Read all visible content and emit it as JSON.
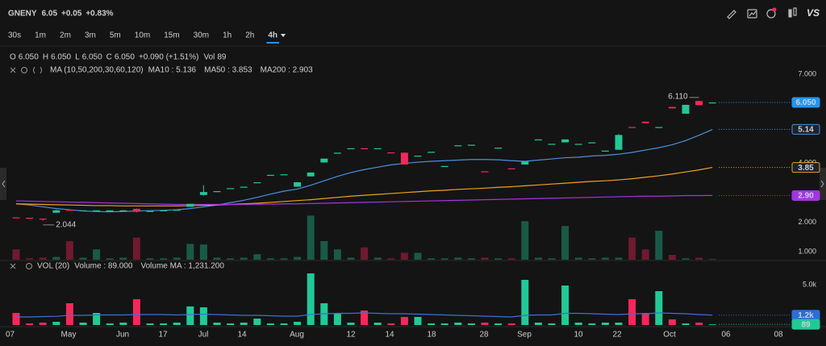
{
  "header": {
    "symbol": "GNENY",
    "price": "6.05",
    "change": "+0.05",
    "change_pct": "+0.83%",
    "brand": "VS"
  },
  "timeframes": [
    {
      "label": "30s"
    },
    {
      "label": "1m"
    },
    {
      "label": "2m"
    },
    {
      "label": "3m"
    },
    {
      "label": "5m"
    },
    {
      "label": "10m"
    },
    {
      "label": "15m"
    },
    {
      "label": "30m"
    },
    {
      "label": "1h"
    },
    {
      "label": "2h"
    },
    {
      "label": "4h",
      "selected": true
    }
  ],
  "chart_data": [
    {
      "type": "candlestick",
      "legend": {
        "o_label": "O",
        "o": "6.050",
        "h_label": "H",
        "h": "6.050",
        "l_label": "L",
        "l": "6.050",
        "c_label": "C",
        "c": "6.050",
        "change": "+0.090 (+1.51%)",
        "vol_label": "Vol",
        "vol": "89"
      },
      "ma_label": "MA (10,50,200,30,60,120)",
      "up_color": "#22c997",
      "down_color": "#f2295a",
      "open": [
        2.16,
        2.15,
        2.12,
        2.32,
        2.42,
        2.4,
        2.38,
        2.4,
        2.4,
        2.45,
        2.38,
        2.4,
        2.42,
        2.52,
        2.92,
        3.05,
        3.15,
        3.2,
        3.35,
        3.6,
        3.62,
        3.2,
        3.55,
        4.02,
        4.35,
        4.48,
        4.5,
        4.5,
        4.36,
        4.35,
        4.25,
        4.38,
        3.9,
        4.6,
        4.62,
        3.72,
        4.52,
        3.82,
        3.95,
        4.8,
        4.65,
        4.7,
        4.65,
        4.7,
        4.4,
        4.45,
        5.22,
        5.4,
        5.2,
        5.9,
        5.67,
        6.1,
        6.05
      ],
      "high": [
        2.16,
        2.15,
        2.12,
        2.42,
        2.42,
        2.4,
        2.4,
        2.4,
        2.41,
        2.46,
        2.38,
        2.4,
        2.42,
        2.62,
        3.25,
        3.05,
        3.15,
        3.2,
        3.35,
        3.6,
        3.62,
        3.35,
        3.68,
        4.15,
        4.35,
        4.5,
        4.5,
        4.5,
        4.36,
        4.36,
        4.25,
        4.38,
        3.9,
        4.6,
        4.62,
        3.72,
        4.52,
        3.82,
        4.05,
        4.8,
        4.65,
        4.8,
        4.65,
        4.7,
        4.42,
        4.98,
        5.22,
        5.4,
        5.22,
        5.9,
        5.97,
        6.11,
        6.05
      ],
      "low": [
        2.15,
        2.12,
        2.044,
        2.32,
        2.4,
        2.4,
        2.37,
        2.4,
        2.39,
        2.33,
        2.38,
        2.4,
        2.42,
        2.52,
        2.9,
        3.05,
        3.15,
        3.2,
        3.35,
        3.6,
        3.62,
        3.2,
        3.55,
        4.02,
        4.35,
        4.48,
        4.48,
        4.5,
        4.34,
        3.95,
        4.25,
        4.38,
        3.9,
        4.6,
        4.62,
        3.7,
        4.52,
        3.8,
        3.95,
        4.8,
        4.65,
        4.7,
        4.65,
        4.7,
        4.4,
        4.45,
        5.2,
        5.35,
        5.2,
        5.85,
        5.67,
        5.95,
        6.05
      ],
      "close": [
        2.15,
        2.12,
        2.1,
        2.4,
        2.4,
        2.4,
        2.4,
        2.4,
        2.4,
        2.35,
        2.38,
        2.4,
        2.42,
        2.62,
        3.02,
        3.05,
        3.15,
        3.2,
        3.35,
        3.6,
        3.62,
        3.35,
        3.68,
        4.15,
        4.35,
        4.5,
        4.48,
        4.5,
        4.34,
        3.95,
        4.25,
        4.38,
        3.9,
        4.6,
        4.62,
        3.7,
        4.52,
        3.8,
        4.05,
        4.8,
        4.65,
        4.8,
        4.65,
        4.7,
        4.42,
        4.95,
        5.2,
        5.35,
        5.22,
        5.85,
        5.97,
        5.96,
        6.05
      ],
      "series": [
        {
          "name": "MA10 : 5.136",
          "color": "#4a90e2",
          "values": [
            2.62,
            2.58,
            2.52,
            2.46,
            2.42,
            2.38,
            2.36,
            2.35,
            2.36,
            2.38,
            2.39,
            2.4,
            2.42,
            2.46,
            2.52,
            2.58,
            2.66,
            2.74,
            2.84,
            2.95,
            3.05,
            3.12,
            3.25,
            3.4,
            3.55,
            3.68,
            3.78,
            3.86,
            3.94,
            3.99,
            4.03,
            4.06,
            4.08,
            4.1,
            4.12,
            4.12,
            4.11,
            4.08,
            4.06,
            4.1,
            4.14,
            4.18,
            4.2,
            4.24,
            4.26,
            4.3,
            4.36,
            4.44,
            4.52,
            4.62,
            4.76,
            4.94,
            5.136
          ]
        },
        {
          "name": "MA50 : 3.853",
          "color": "#f0a020",
          "values": [
            2.62,
            2.61,
            2.6,
            2.59,
            2.58,
            2.57,
            2.56,
            2.56,
            2.55,
            2.55,
            2.55,
            2.55,
            2.55,
            2.56,
            2.57,
            2.58,
            2.6,
            2.62,
            2.64,
            2.67,
            2.7,
            2.73,
            2.76,
            2.8,
            2.84,
            2.88,
            2.91,
            2.94,
            2.97,
            3.0,
            3.03,
            3.06,
            3.08,
            3.11,
            3.13,
            3.15,
            3.18,
            3.2,
            3.23,
            3.26,
            3.29,
            3.32,
            3.35,
            3.38,
            3.4,
            3.43,
            3.47,
            3.52,
            3.57,
            3.63,
            3.7,
            3.77,
            3.853
          ]
        },
        {
          "name": "MA200 : 2.903",
          "color": "#a335e0",
          "values": [
            2.72,
            2.71,
            2.7,
            2.69,
            2.68,
            2.67,
            2.66,
            2.65,
            2.64,
            2.63,
            2.62,
            2.61,
            2.6,
            2.6,
            2.6,
            2.6,
            2.6,
            2.6,
            2.61,
            2.61,
            2.62,
            2.62,
            2.63,
            2.64,
            2.65,
            2.66,
            2.67,
            2.68,
            2.69,
            2.7,
            2.71,
            2.72,
            2.73,
            2.74,
            2.75,
            2.76,
            2.77,
            2.78,
            2.79,
            2.8,
            2.81,
            2.82,
            2.83,
            2.84,
            2.85,
            2.86,
            2.87,
            2.88,
            2.88,
            2.89,
            2.9,
            2.9,
            2.903
          ]
        }
      ],
      "ylim": [
        0.73,
        7.88
      ],
      "yticks": [
        {
          "value": 1,
          "label": "1.000"
        },
        {
          "value": 2,
          "label": "2.000"
        },
        {
          "value": 4,
          "label": "4.000"
        },
        {
          "value": 7,
          "label": "7.000"
        }
      ],
      "price_tags": [
        {
          "value": 6.05,
          "label": "6.050",
          "color": "#2196f3",
          "style": "filled"
        },
        {
          "value": 5.14,
          "label": "5.14",
          "color": "#4a90e2",
          "style": "outline"
        },
        {
          "value": 3.85,
          "label": "3.85",
          "color": "#f0a020",
          "style": "outline"
        },
        {
          "value": 2.9,
          "label": "2.90",
          "color": "#a335e0",
          "style": "filled"
        }
      ],
      "annotations": [
        {
          "value": 6.11,
          "label": "6.110"
        },
        {
          "value": 2.044,
          "label": "2.044"
        }
      ]
    },
    {
      "type": "bar",
      "legend_title": "VOL (20)",
      "series": [
        {
          "name": "Volume : 89.000",
          "color": "#22c997",
          "values": [
            1500,
            200,
            300,
            400,
            2700,
            300,
            1500,
            200,
            300,
            3200,
            200,
            200,
            300,
            2300,
            2200,
            300,
            200,
            300,
            800,
            200,
            200,
            400,
            6400,
            2700,
            1500,
            300,
            1800,
            300,
            200,
            1000,
            1000,
            200,
            200,
            300,
            200,
            300,
            200,
            200,
            5600,
            300,
            200,
            4900,
            300,
            200,
            300,
            300,
            3200,
            1500,
            4200,
            700,
            200,
            300,
            89
          ]
        },
        {
          "name": "Volume MA : 1,231.200",
          "color": "#3f6fd8",
          "values": [
            1000,
            1000,
            1050,
            1080,
            1200,
            1200,
            1250,
            1250,
            1250,
            1300,
            1300,
            1300,
            1250,
            1300,
            1350,
            1300,
            1250,
            1200,
            1200,
            1150,
            1100,
            1100,
            1300,
            1400,
            1450,
            1450,
            1500,
            1450,
            1400,
            1400,
            1350,
            1300,
            1250,
            1200,
            1150,
            1100,
            1050,
            1000,
            1200,
            1250,
            1250,
            1450,
            1450,
            1400,
            1350,
            1300,
            1400,
            1400,
            1500,
            1450,
            1400,
            1300,
            1231.2
          ]
        }
      ],
      "ylim": [
        0,
        6800
      ],
      "yticks": [
        {
          "value": 5000,
          "label": "5.0k"
        }
      ],
      "tags": [
        {
          "value": 1231.2,
          "label": "1.2k",
          "color": "#2a6fd6",
          "style": "filled"
        },
        {
          "value": 89,
          "label": "89",
          "color": "#22c997",
          "style": "filled"
        }
      ],
      "x_labels": [
        "07",
        "May",
        "Jun",
        "17",
        "Jul",
        "14",
        "Aug",
        "12",
        "14",
        "18",
        "28",
        "Sep",
        "10",
        "22",
        "Oct",
        "06",
        "08"
      ]
    }
  ]
}
